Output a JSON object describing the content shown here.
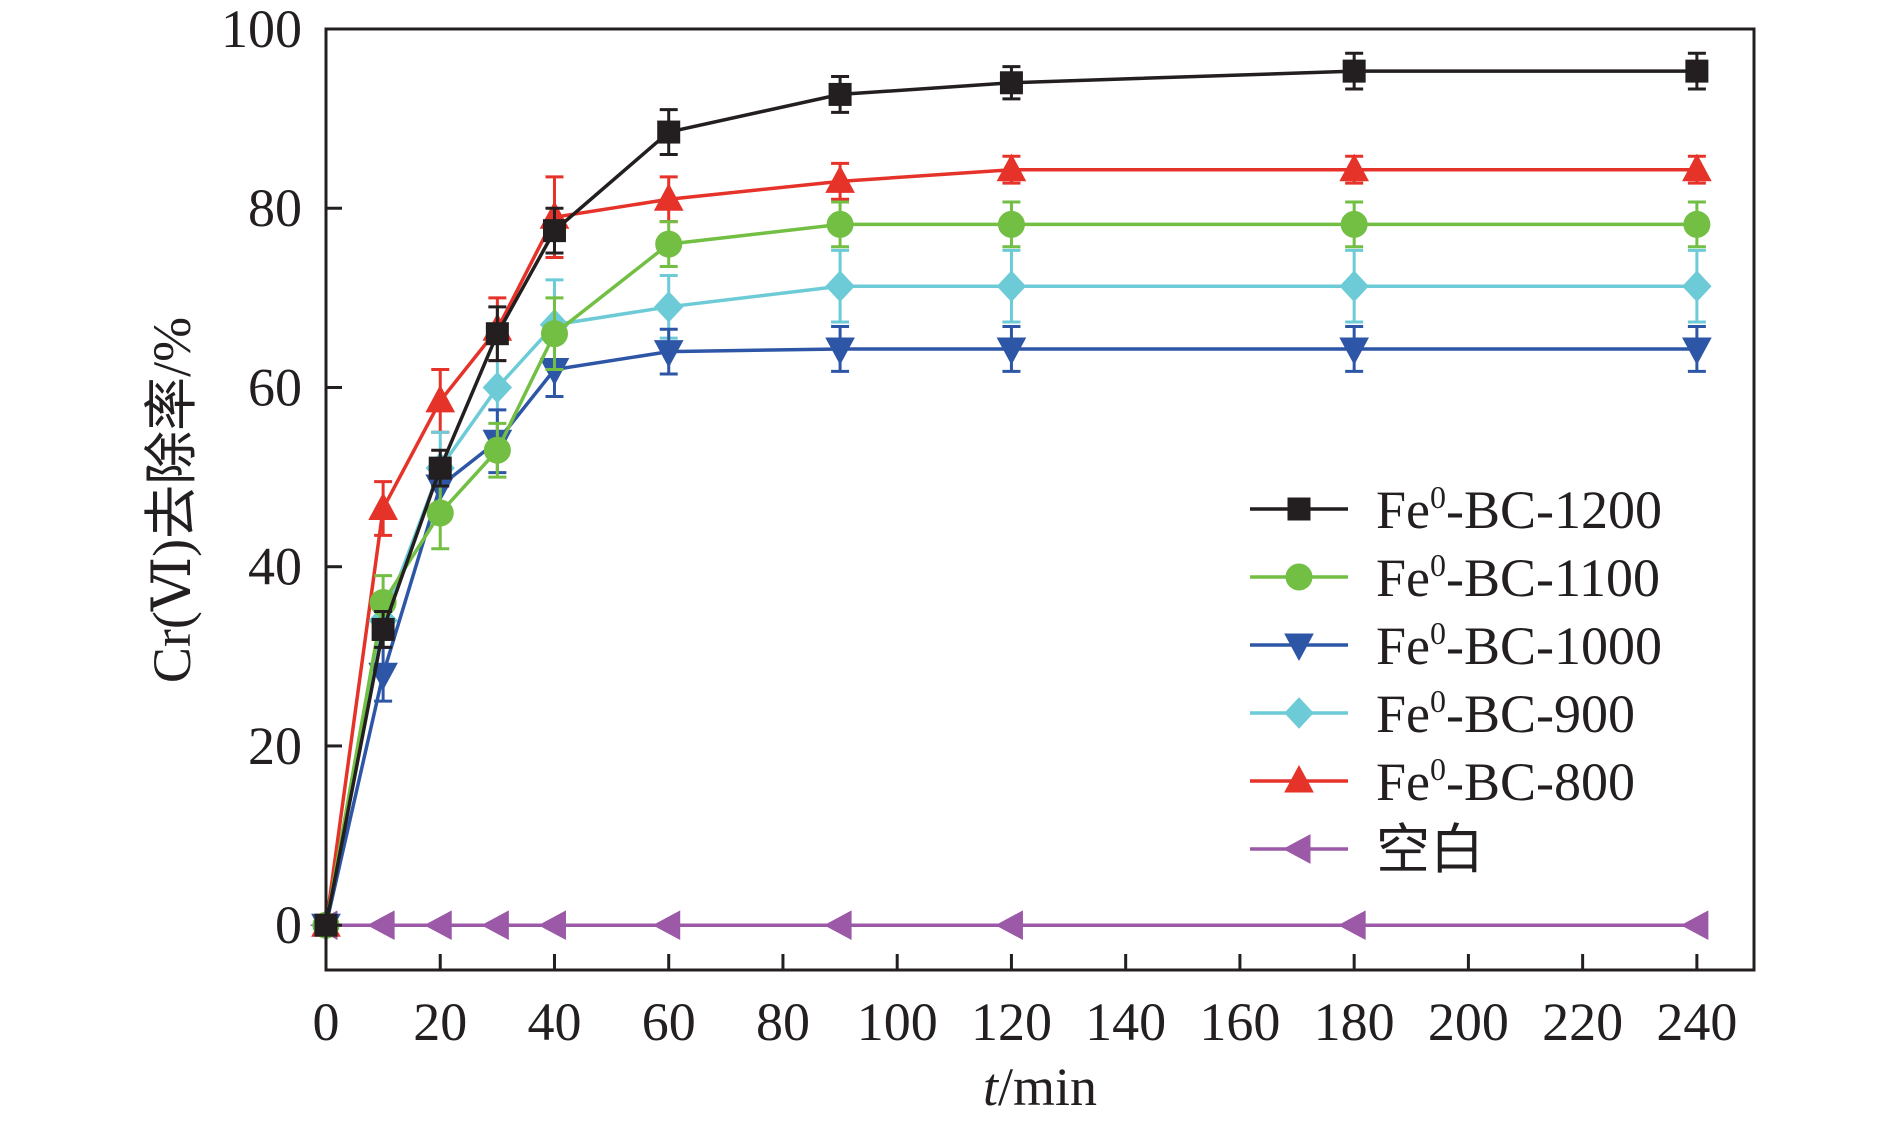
{
  "chart_data": {
    "type": "line",
    "xlabel": "t/min",
    "xlabel_italic_part": "t",
    "xlabel_rest": "/min",
    "ylabel": "Cr(Ⅵ)去除率/%",
    "xlim": [
      0,
      250
    ],
    "ylim": [
      -5,
      100
    ],
    "xticks": [
      0,
      20,
      40,
      60,
      80,
      100,
      120,
      140,
      160,
      180,
      200,
      220,
      240
    ],
    "yticks": [
      0,
      20,
      40,
      60,
      80,
      100
    ],
    "x": [
      0,
      10,
      20,
      30,
      40,
      60,
      90,
      120,
      180,
      240
    ],
    "grid": false,
    "legend_position": "right",
    "series": [
      {
        "name": "Fe⁰-BC-1200",
        "name_base": "Fe",
        "name_sup": "0",
        "name_rest": "-BC-1200",
        "color": "#231f20",
        "marker": "square",
        "values": [
          0,
          33,
          51,
          66,
          77.5,
          88.5,
          92.7,
          94,
          95.3,
          95.3
        ],
        "errors": [
          0,
          2,
          2,
          3,
          2.5,
          2.5,
          2,
          1.8,
          2,
          2
        ]
      },
      {
        "name": "Fe⁰-BC-1100",
        "name_base": "Fe",
        "name_sup": "0",
        "name_rest": "-BC-1100",
        "color": "#72bf44",
        "marker": "circle",
        "values": [
          0,
          36,
          46,
          53,
          66,
          76,
          78.2,
          78.2,
          78.2,
          78.2
        ],
        "errors": [
          0,
          3,
          4,
          3,
          4,
          2.5,
          2.5,
          2.5,
          2.5,
          2.5
        ]
      },
      {
        "name": "Fe⁰-BC-1000",
        "name_base": "Fe",
        "name_sup": "0",
        "name_rest": "-BC-1000",
        "color": "#2e56a6",
        "marker": "triangle-down",
        "values": [
          0,
          28,
          49,
          54,
          62,
          64,
          64.3,
          64.3,
          64.3,
          64.3
        ],
        "errors": [
          0,
          3,
          3,
          3.5,
          3,
          2.5,
          2.5,
          2.5,
          2.5,
          2.5
        ]
      },
      {
        "name": "Fe⁰-BC-900",
        "name_base": "Fe",
        "name_sup": "0",
        "name_rest": "-BC-900",
        "color": "#6ccbd6",
        "marker": "diamond",
        "values": [
          0,
          34,
          51,
          60,
          67,
          69,
          71.3,
          71.3,
          71.3,
          71.3
        ],
        "errors": [
          0,
          3,
          4,
          5,
          5,
          3.5,
          4,
          4,
          4,
          4
        ]
      },
      {
        "name": "Fe⁰-BC-800",
        "name_base": "Fe",
        "name_sup": "0",
        "name_rest": "-BC-800",
        "color": "#e6332a",
        "marker": "triangle-up",
        "values": [
          0,
          46.5,
          58.5,
          66.5,
          79,
          81,
          83,
          84.3,
          84.3,
          84.3
        ],
        "errors": [
          0,
          3,
          3.5,
          3.5,
          4.5,
          2.5,
          2,
          1.5,
          1.5,
          1.5
        ]
      },
      {
        "name": "空白",
        "name_base": "空白",
        "name_sup": "",
        "name_rest": "",
        "color": "#9b59a7",
        "marker": "triangle-left",
        "values": [
          0,
          0,
          0,
          0,
          0,
          0,
          0,
          0,
          0,
          0
        ],
        "errors": [
          0,
          0,
          0,
          0,
          0,
          0,
          0,
          0,
          0,
          0
        ]
      }
    ]
  }
}
